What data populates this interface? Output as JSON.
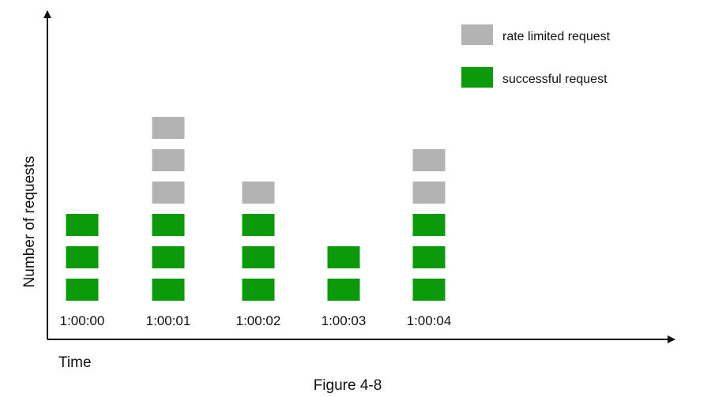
{
  "chart_data": {
    "type": "bar",
    "stacked": true,
    "xlabel": "Time",
    "ylabel": "Number of requests",
    "caption": "Figure 4-8",
    "categories": [
      "1:00:00",
      "1:00:01",
      "1:00:02",
      "1:00:03",
      "1:00:04"
    ],
    "series": [
      {
        "name": "successful request",
        "values": [
          3,
          3,
          3,
          2,
          3
        ],
        "color": "#0a9a0a"
      },
      {
        "name": "rate limited request",
        "values": [
          0,
          3,
          1,
          0,
          2
        ],
        "color": "#b3b3b3"
      }
    ],
    "legend_position": "top-right",
    "grid": false
  }
}
